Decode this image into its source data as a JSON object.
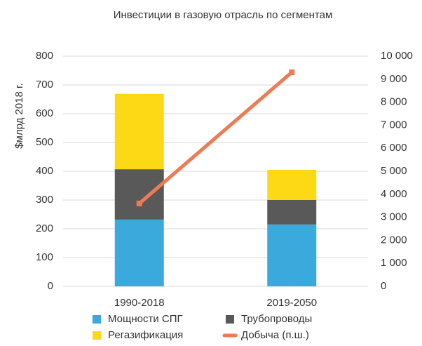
{
  "chart_data": {
    "type": "bar",
    "stacked": true,
    "title": "Инвестиции в газовую отрасль по сегментам",
    "y_label": "$млрд 2018 г.",
    "categories": [
      "1990-2018",
      "2019-2050"
    ],
    "series": [
      {
        "name": "Мощности СПГ",
        "color": "#3aa9dc",
        "values": [
          232,
          215
        ]
      },
      {
        "name": "Трубопроводы",
        "color": "#595959",
        "values": [
          175,
          85
        ]
      },
      {
        "name": "Регазификация",
        "color": "#fdd814",
        "values": [
          262,
          105
        ]
      },
      {
        "name": "Добыча (п.ш.)",
        "color": "#ef7a54",
        "type": "line",
        "axis": "y2",
        "values": [
          3600,
          9300
        ]
      }
    ],
    "ylim": [
      0,
      800
    ],
    "yticks": [
      0,
      100,
      200,
      300,
      400,
      500,
      600,
      700,
      800
    ],
    "y2lim": [
      0,
      10000
    ],
    "y2ticks": [
      0,
      {
        "value": 1000,
        "label": "1 000"
      },
      {
        "value": 2000,
        "label": "2 000"
      },
      {
        "value": 3000,
        "label": "3 000"
      },
      {
        "value": 4000,
        "label": "4 000"
      },
      {
        "value": 5000,
        "label": "5 000"
      },
      {
        "value": 6000,
        "label": "6 000"
      },
      {
        "value": 7000,
        "label": "7 000"
      },
      {
        "value": 8000,
        "label": "8 000"
      },
      {
        "value": 9000,
        "label": "9 000"
      },
      {
        "value": 10000,
        "label": "10 000"
      }
    ],
    "grid": true,
    "legend": "bottom"
  }
}
